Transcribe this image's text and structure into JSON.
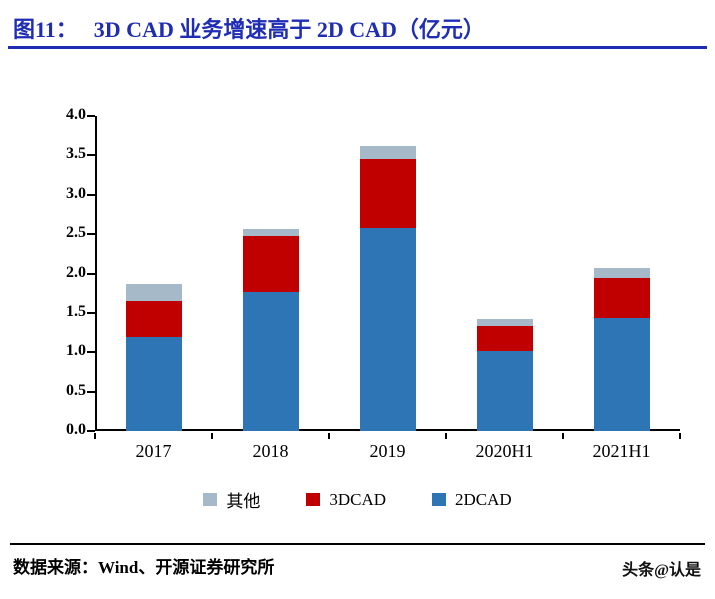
{
  "header": {
    "figure_label": "图11：",
    "title": "3D CAD 业务增速高于 2D CAD（亿元）",
    "accent_color": "#1F2DB4"
  },
  "chart_data": {
    "type": "bar",
    "stacked": true,
    "title": "3D CAD 业务增速高于 2D CAD（亿元）",
    "categories": [
      "2017",
      "2018",
      "2019",
      "2020H1",
      "2021H1"
    ],
    "series": [
      {
        "name": "2DCAD",
        "color": "#2E75B6",
        "values": [
          1.19,
          1.76,
          2.58,
          1.02,
          1.43
        ]
      },
      {
        "name": "3DCAD",
        "color": "#C00000",
        "values": [
          0.46,
          0.72,
          0.87,
          0.31,
          0.51
        ]
      },
      {
        "name": "其他",
        "color": "#A6B9C8",
        "values": [
          0.22,
          0.09,
          0.17,
          0.09,
          0.13
        ]
      }
    ],
    "xlabel": "",
    "ylabel": "",
    "ylim": [
      0,
      4
    ],
    "ytick_step": 0.5,
    "ytick_labels": [
      "0.0",
      "0.5",
      "1.0",
      "1.5",
      "2.0",
      "2.5",
      "3.0",
      "3.5",
      "4.0"
    ],
    "grid": false,
    "legend_position": "bottom",
    "legend_order": [
      "其他",
      "3DCAD",
      "2DCAD"
    ]
  },
  "footer": {
    "source": "数据来源：Wind、开源证券研究所",
    "watermark": "头条@认是"
  }
}
